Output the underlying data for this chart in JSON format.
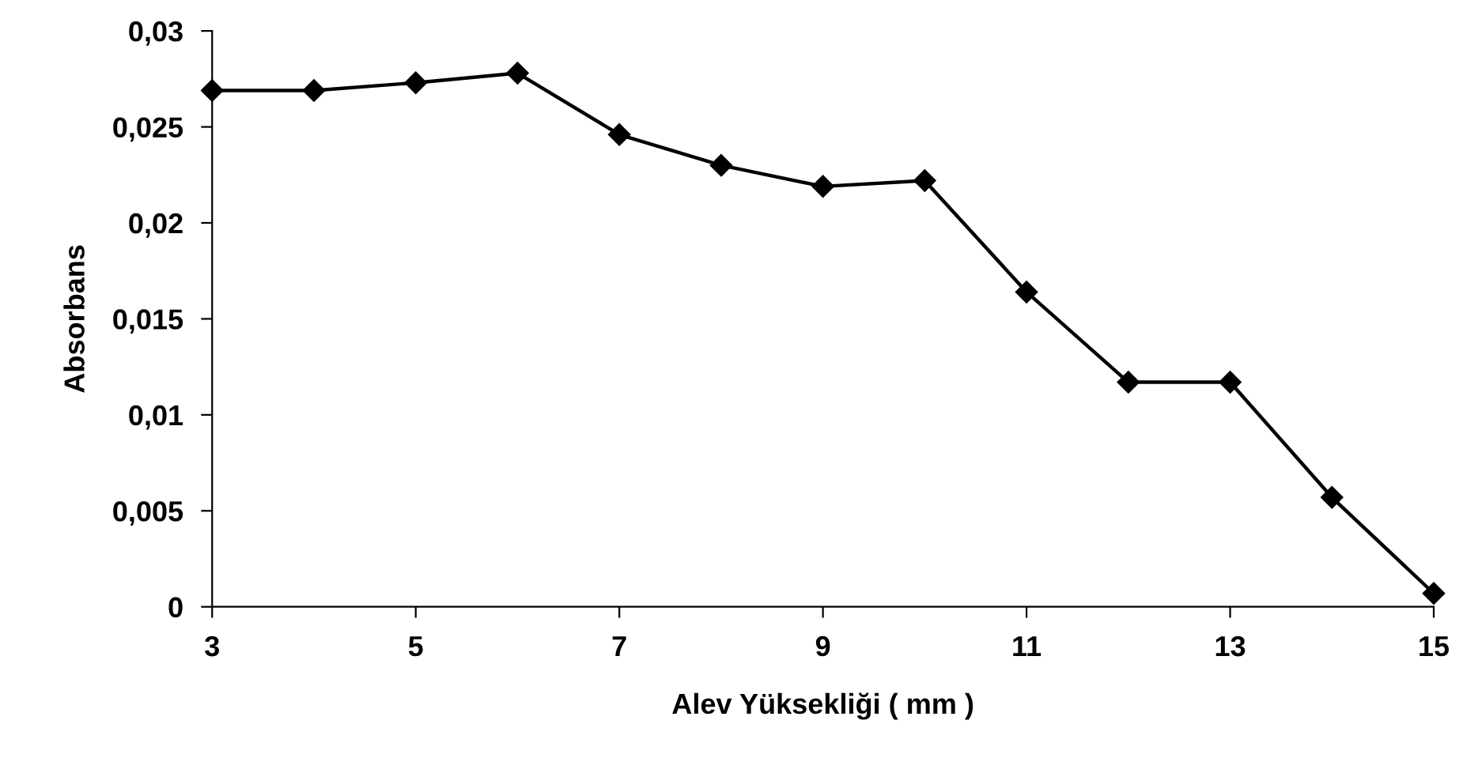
{
  "chart_data": {
    "type": "line",
    "xlabel": "Alev Yüksekliği ( mm )",
    "ylabel": "Absorbans",
    "x": [
      3,
      4,
      5,
      6,
      7,
      8,
      9,
      10,
      11,
      12,
      13,
      14,
      15
    ],
    "series": [
      {
        "color": "#000000",
        "values": [
          0.0269,
          0.0269,
          0.0273,
          0.0278,
          0.0246,
          0.023,
          0.0219,
          0.0222,
          0.0164,
          0.0117,
          0.0117,
          0.0057,
          0.0007
        ]
      }
    ],
    "xlim": [
      3,
      15
    ],
    "xticks": [
      3,
      5,
      7,
      9,
      11,
      13,
      15
    ],
    "ylim": [
      0,
      0.03
    ],
    "yticks": [
      {
        "value": 0,
        "label": "0"
      },
      {
        "value": 0.005,
        "label": "0,005"
      },
      {
        "value": 0.01,
        "label": "0,01"
      },
      {
        "value": 0.015,
        "label": "0,015"
      },
      {
        "value": 0.02,
        "label": "0,02"
      },
      {
        "value": 0.025,
        "label": "0,025"
      },
      {
        "value": 0.03,
        "label": "0,03"
      }
    ],
    "marker": "diamond",
    "line_style": "solid",
    "grid": false
  }
}
